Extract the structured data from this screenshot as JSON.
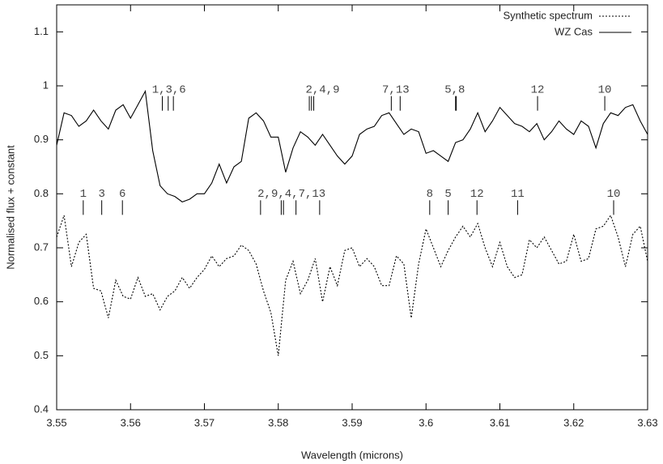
{
  "chart_data": {
    "type": "line",
    "xlabel": "Wavelength (microns)",
    "ylabel": "Normalised flux + constant",
    "x": [
      3.55,
      3.551,
      3.552,
      3.553,
      3.554,
      3.555,
      3.556,
      3.557,
      3.558,
      3.559,
      3.56,
      3.561,
      3.562,
      3.563,
      3.564,
      3.565,
      3.566,
      3.567,
      3.568,
      3.569,
      3.57,
      3.571,
      3.572,
      3.573,
      3.574,
      3.575,
      3.576,
      3.577,
      3.578,
      3.579,
      3.58,
      3.581,
      3.582,
      3.583,
      3.584,
      3.585,
      3.586,
      3.587,
      3.588,
      3.589,
      3.59,
      3.591,
      3.592,
      3.593,
      3.594,
      3.595,
      3.596,
      3.597,
      3.598,
      3.599,
      3.6,
      3.601,
      3.602,
      3.603,
      3.604,
      3.605,
      3.606,
      3.607,
      3.608,
      3.609,
      3.61,
      3.611,
      3.612,
      3.613,
      3.614,
      3.615,
      3.616,
      3.617,
      3.618,
      3.619,
      3.62,
      3.621,
      3.622,
      3.623,
      3.624,
      3.625,
      3.626,
      3.627,
      3.628,
      3.629,
      3.63
    ],
    "series": [
      {
        "name": "Synthetic spectrum",
        "color": "#000000",
        "style": "dotted",
        "values": [
          0.72,
          0.76,
          0.665,
          0.71,
          0.725,
          0.625,
          0.62,
          0.57,
          0.64,
          0.61,
          0.605,
          0.645,
          0.61,
          0.615,
          0.585,
          0.61,
          0.62,
          0.645,
          0.625,
          0.645,
          0.66,
          0.685,
          0.665,
          0.68,
          0.685,
          0.705,
          0.695,
          0.67,
          0.62,
          0.58,
          0.5,
          0.64,
          0.675,
          0.615,
          0.64,
          0.68,
          0.6,
          0.665,
          0.63,
          0.695,
          0.7,
          0.665,
          0.68,
          0.665,
          0.63,
          0.63,
          0.685,
          0.67,
          0.57,
          0.67,
          0.735,
          0.7,
          0.665,
          0.695,
          0.72,
          0.74,
          0.72,
          0.745,
          0.7,
          0.665,
          0.71,
          0.665,
          0.645,
          0.65,
          0.715,
          0.7,
          0.72,
          0.695,
          0.67,
          0.675,
          0.725,
          0.675,
          0.68,
          0.735,
          0.74,
          0.76,
          0.72,
          0.665,
          0.725,
          0.74,
          0.675
        ]
      },
      {
        "name": "WZ Cas",
        "color": "#000000",
        "style": "solid",
        "values": [
          0.89,
          0.95,
          0.945,
          0.925,
          0.935,
          0.955,
          0.935,
          0.92,
          0.955,
          0.965,
          0.94,
          0.965,
          0.99,
          0.88,
          0.815,
          0.8,
          0.795,
          0.785,
          0.79,
          0.8,
          0.8,
          0.82,
          0.855,
          0.82,
          0.85,
          0.86,
          0.94,
          0.95,
          0.935,
          0.905,
          0.905,
          0.84,
          0.885,
          0.915,
          0.905,
          0.89,
          0.91,
          0.89,
          0.87,
          0.855,
          0.87,
          0.91,
          0.92,
          0.925,
          0.945,
          0.95,
          0.93,
          0.91,
          0.92,
          0.915,
          0.875,
          0.88,
          0.87,
          0.86,
          0.895,
          0.9,
          0.92,
          0.95,
          0.915,
          0.935,
          0.96,
          0.945,
          0.93,
          0.925,
          0.915,
          0.93,
          0.9,
          0.915,
          0.935,
          0.92,
          0.91,
          0.935,
          0.925,
          0.885,
          0.93,
          0.95,
          0.945,
          0.96,
          0.965,
          0.935,
          0.91
        ]
      }
    ],
    "xlim": [
      3.55,
      3.63
    ],
    "xticks": [
      3.55,
      3.56,
      3.57,
      3.58,
      3.59,
      3.6,
      3.61,
      3.62,
      3.63
    ],
    "ylim": [
      0.4,
      1.15
    ],
    "yticks": [
      0.4,
      0.5,
      0.6,
      0.7,
      0.8,
      0.9,
      1,
      1.1
    ],
    "grid": false,
    "legend": "upper right",
    "annotations": [
      {
        "text": "1,3,6",
        "x": 3.5652,
        "y": 0.993,
        "marks": [
          3.5643,
          3.5651,
          3.5658
        ]
      },
      {
        "text": "2,4,9",
        "x": 3.586,
        "y": 0.993,
        "marks": [
          3.5842,
          3.5845,
          3.5848
        ]
      },
      {
        "text": "7,13",
        "x": 3.5959,
        "y": 0.993,
        "marks": [
          3.5953,
          3.5965
        ]
      },
      {
        "text": "5,8",
        "x": 3.6039,
        "y": 0.993,
        "marks": [
          3.604,
          3.6041
        ]
      },
      {
        "text": "12",
        "x": 3.6151,
        "y": 0.993,
        "marks": [
          3.6151
        ]
      },
      {
        "text": "10",
        "x": 3.6242,
        "y": 0.993,
        "marks": [
          3.6242
        ]
      },
      {
        "text": "1",
        "x": 3.5536,
        "y": 0.8,
        "marks": [
          3.5536
        ]
      },
      {
        "text": "3",
        "x": 3.5561,
        "y": 0.8,
        "marks": [
          3.5561
        ]
      },
      {
        "text": "6",
        "x": 3.5589,
        "y": 0.8,
        "marks": [
          3.5589
        ]
      },
      {
        "text": "2,9,4,7,13",
        "x": 3.5818,
        "y": 0.8,
        "marks": [
          3.5776,
          3.5804,
          3.5807,
          3.5824,
          3.5856
        ]
      },
      {
        "text": "8",
        "x": 3.6005,
        "y": 0.8,
        "marks": [
          3.6005
        ]
      },
      {
        "text": "5",
        "x": 3.603,
        "y": 0.8,
        "marks": [
          3.603
        ]
      },
      {
        "text": "12",
        "x": 3.6069,
        "y": 0.8,
        "marks": [
          3.6069
        ]
      },
      {
        "text": "11",
        "x": 3.6124,
        "y": 0.8,
        "marks": [
          3.6124
        ]
      },
      {
        "text": "10",
        "x": 3.6254,
        "y": 0.8,
        "marks": [
          3.6254
        ]
      }
    ]
  }
}
